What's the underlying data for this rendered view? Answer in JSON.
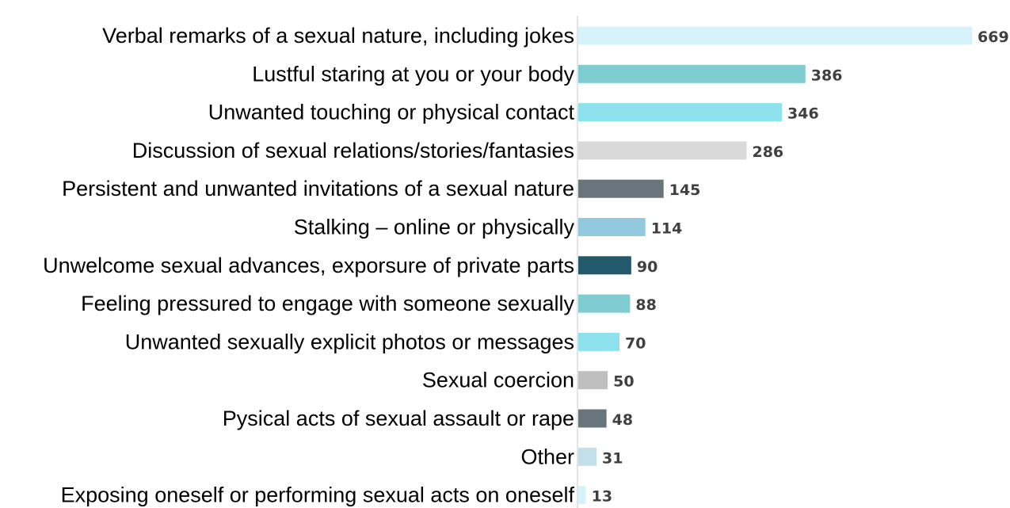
{
  "chart_data": {
    "type": "bar",
    "orientation": "horizontal",
    "title": "",
    "xlabel": "",
    "ylabel": "",
    "xlim": [
      0,
      669
    ],
    "grid": false,
    "legend": "none",
    "categories": [
      "Verbal remarks of a sexual nature, including jokes",
      "Lustful staring at you or your body",
      "Unwanted touching or physical contact",
      "Discussion of sexual relations/stories/fantasies",
      "Persistent and unwanted invitations of a sexual nature",
      "Stalking – online or physically",
      "Unwelcome sexual advances, exporsure of private parts",
      "Feeling pressured to engage with someone sexually",
      "Unwanted sexually explicit photos or messages",
      "Sexual coercion",
      "Pysical acts of sexual assault or rape",
      "Other",
      "Exposing oneself or performing sexual acts on oneself"
    ],
    "values": [
      669,
      386,
      346,
      286,
      145,
      114,
      90,
      88,
      70,
      50,
      48,
      31,
      13
    ],
    "bar_colors": [
      "#d6f3fb",
      "#7fcdd0",
      "#8ee2ee",
      "#d9d9d9",
      "#68757d",
      "#92c9de",
      "#225a6b",
      "#7fcdd0",
      "#8ee2ee",
      "#bfbfbf",
      "#68757d",
      "#c3dfea",
      "#d6f3fb"
    ],
    "axis_color": "#e4e4e4"
  }
}
